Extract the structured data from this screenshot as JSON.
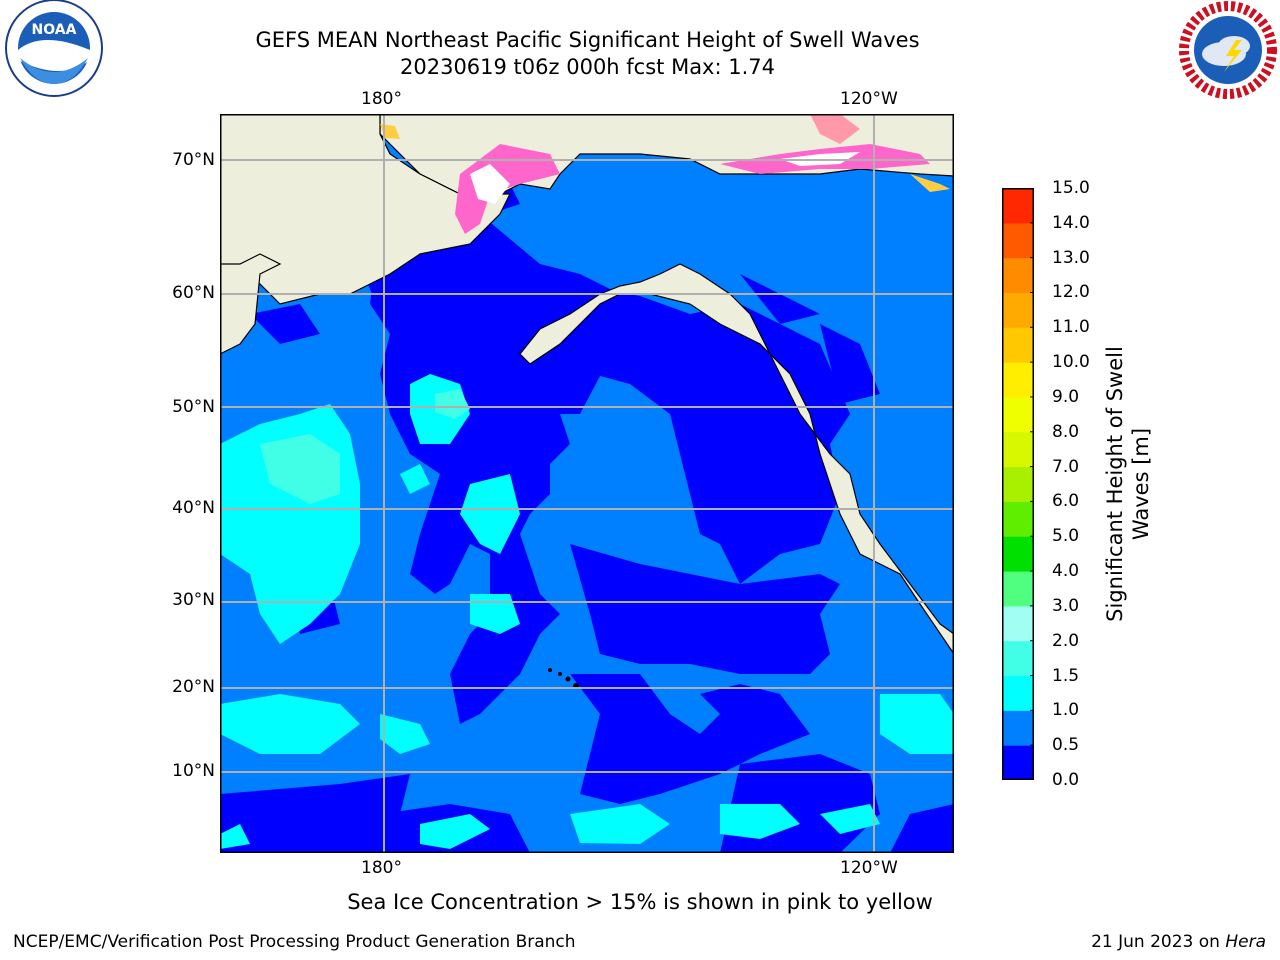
{
  "title_line1": "GEFS MEAN Northeast Pacific Significant Height of Swell Waves",
  "title_line2": "20230619 t06z 000h fcst   Max: 1.74",
  "top_lon_labels": [
    "180°",
    "120°W"
  ],
  "bottom_lon_labels": [
    "180°",
    "120°W"
  ],
  "lat_labels": [
    "70°N",
    "60°N",
    "50°N",
    "40°N",
    "30°N",
    "20°N",
    "10°N"
  ],
  "colorbar": {
    "title": "Significant Height of Swell Waves [m]",
    "tick_labels": [
      "15.0",
      "14.0",
      "13.0",
      "12.0",
      "11.0",
      "10.0",
      "9.0",
      "8.0",
      "7.0",
      "6.0",
      "5.0",
      "4.0",
      "3.0",
      "2.0",
      "1.5",
      "1.0",
      "0.5",
      "0.0"
    ],
    "colors_bottom_to_top": [
      "#0000ff",
      "#0080ff",
      "#00ffff",
      "#40ffe6",
      "#a0fff2",
      "#50ff80",
      "#00e000",
      "#60ee00",
      "#a8f000",
      "#d8f800",
      "#f0ff00",
      "#ffee00",
      "#ffc800",
      "#ffaa00",
      "#ff8c00",
      "#ff5a00",
      "#ff2800"
    ]
  },
  "sea_ice_note": "Sea Ice Concentration > 15% is shown in pink to yellow",
  "credit": "NCEP/EMC/Verification Post Processing Product Generation Branch",
  "date_text": "21 Jun 2023 on ",
  "host_text": "Hera",
  "logos": {
    "noaa": "NOAA",
    "nws": "NATIONAL WEATHER SERVICE"
  },
  "colors": {
    "land": "#eeeedd",
    "coast": "#000000",
    "grid": "#b0b0b0"
  }
}
